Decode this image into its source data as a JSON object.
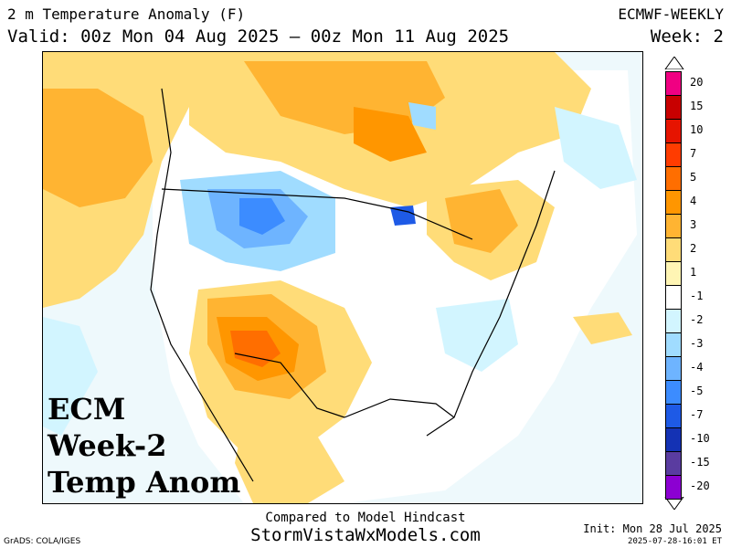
{
  "header": {
    "title": "2 m Temperature Anomaly (F)",
    "valid": "Valid: 00z Mon 04 Aug 2025 – 00z Mon 11 Aug 2025",
    "model": "ECMWF-WEEKLY",
    "week": "Week: 2"
  },
  "overlay": {
    "line1": "ECM",
    "line2": "Week-2",
    "line3": "Temp Anom"
  },
  "colorbar": {
    "labels": [
      "20",
      "15",
      "10",
      "7",
      "5",
      "4",
      "3",
      "2",
      "1",
      "-1",
      "-2",
      "-3",
      "-4",
      "-5",
      "-7",
      "-10",
      "-15",
      "-20"
    ],
    "colors": [
      "#f00082",
      "#c80000",
      "#e61400",
      "#ff3c00",
      "#ff6e00",
      "#ff9600",
      "#ffb432",
      "#ffdc78",
      "#fff5b4",
      "#ffffff",
      "#d2f5ff",
      "#a0dcff",
      "#6eb4ff",
      "#3c8cff",
      "#1e5ae6",
      "#1432b4",
      "#5a3ca0",
      "#8c00d2"
    ]
  },
  "footer": {
    "compare": "Compared to Model Hindcast",
    "site": "StormVistaWxModels.com",
    "grads": "GrADS: COLA/IGES",
    "init": "Init: Mon 28 Jul 2025",
    "stamp": "2025-07-28-16:01 ET"
  }
}
